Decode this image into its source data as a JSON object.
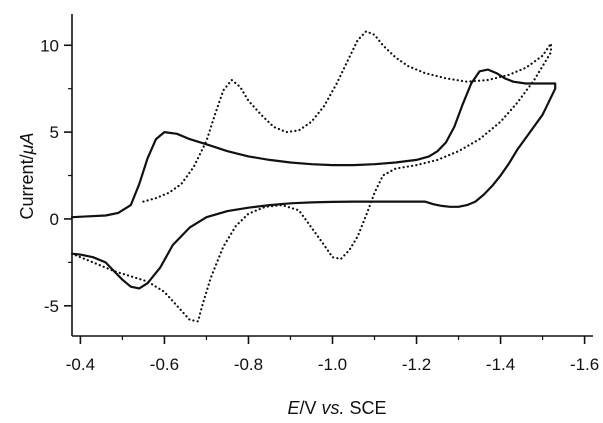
{
  "chart_data": {
    "type": "line",
    "title": "",
    "xlabel": {
      "italic_part": "E",
      "rest": "/V ",
      "vs": "vs.",
      "suffix": " SCE"
    },
    "ylabel": {
      "prefix": "Current/",
      "unit": "μA"
    },
    "xlim": [
      -0.38,
      -1.62
    ],
    "ylim": [
      -7.2,
      11.8
    ],
    "x_axis_reversed": true,
    "x_ticks": [
      -0.4,
      -0.6,
      -0.8,
      -1.0,
      -1.2,
      -1.4,
      -1.6
    ],
    "x_tick_labels": [
      "-0.4",
      "-0.6",
      "-0.8",
      "-1.0",
      "-1.2",
      "-1.4",
      "-1.6"
    ],
    "y_ticks": [
      10,
      5,
      0,
      -5
    ],
    "y_tick_labels": [
      "10",
      "5",
      "0",
      "-5"
    ],
    "grid": false,
    "legend": "none",
    "series": [
      {
        "style": "solid",
        "x": [
          -0.38,
          -0.42,
          -0.46,
          -0.49,
          -0.52,
          -0.54,
          -0.56,
          -0.58,
          -0.6,
          -0.63,
          -0.66,
          -0.7,
          -0.75,
          -0.8,
          -0.85,
          -0.9,
          -0.95,
          -1.0,
          -1.05,
          -1.1,
          -1.15,
          -1.2,
          -1.23,
          -1.25,
          -1.27,
          -1.29,
          -1.31,
          -1.33,
          -1.35,
          -1.37,
          -1.39,
          -1.41,
          -1.43,
          -1.46,
          -1.49,
          -1.53,
          -1.53,
          -1.5,
          -1.47,
          -1.44,
          -1.42,
          -1.4,
          -1.38,
          -1.36,
          -1.34,
          -1.32,
          -1.3,
          -1.28,
          -1.26,
          -1.24,
          -1.22,
          -1.2,
          -1.15,
          -1.1,
          -1.05,
          -1.0,
          -0.95,
          -0.9,
          -0.85,
          -0.8,
          -0.75,
          -0.7,
          -0.66,
          -0.62,
          -0.59,
          -0.56,
          -0.54,
          -0.52,
          -0.51,
          -0.5,
          -0.48,
          -0.46,
          -0.43,
          -0.4,
          -0.38
        ],
        "y": [
          0.1,
          0.15,
          0.2,
          0.35,
          0.8,
          2.0,
          3.5,
          4.6,
          5.0,
          4.9,
          4.6,
          4.3,
          3.9,
          3.6,
          3.4,
          3.25,
          3.15,
          3.1,
          3.1,
          3.15,
          3.25,
          3.4,
          3.6,
          3.9,
          4.4,
          5.3,
          6.6,
          7.8,
          8.5,
          8.6,
          8.4,
          8.1,
          7.9,
          7.8,
          7.8,
          7.8,
          7.5,
          6.0,
          5.0,
          4.0,
          3.2,
          2.5,
          1.9,
          1.4,
          1.0,
          0.8,
          0.7,
          0.7,
          0.75,
          0.85,
          1.0,
          1.0,
          1.0,
          1.0,
          1.0,
          0.98,
          0.95,
          0.9,
          0.8,
          0.65,
          0.45,
          0.1,
          -0.5,
          -1.5,
          -2.8,
          -3.7,
          -4.0,
          -3.9,
          -3.7,
          -3.5,
          -3.0,
          -2.5,
          -2.2,
          -2.05,
          -2.0
        ]
      },
      {
        "style": "dotted",
        "x": [
          -0.55,
          -0.58,
          -0.61,
          -0.64,
          -0.67,
          -0.7,
          -0.72,
          -0.74,
          -0.76,
          -0.78,
          -0.8,
          -0.83,
          -0.86,
          -0.89,
          -0.92,
          -0.95,
          -0.98,
          -1.01,
          -1.04,
          -1.06,
          -1.08,
          -1.1,
          -1.12,
          -1.15,
          -1.18,
          -1.22,
          -1.27,
          -1.32,
          -1.37,
          -1.42,
          -1.46,
          -1.5,
          -1.52,
          -1.52,
          -1.48,
          -1.44,
          -1.4,
          -1.35,
          -1.3,
          -1.25,
          -1.2,
          -1.15,
          -1.12,
          -1.1,
          -1.08,
          -1.06,
          -1.04,
          -1.02,
          -1.0,
          -0.98,
          -0.95,
          -0.92,
          -0.88,
          -0.84,
          -0.8,
          -0.77,
          -0.74,
          -0.71,
          -0.69,
          -0.68,
          -0.66,
          -0.63,
          -0.6,
          -0.56,
          -0.52,
          -0.48,
          -0.44,
          -0.4,
          -0.38
        ],
        "y": [
          1.0,
          1.2,
          1.5,
          2.0,
          3.0,
          4.5,
          6.0,
          7.4,
          8.0,
          7.6,
          6.8,
          6.0,
          5.3,
          5.0,
          5.1,
          5.6,
          6.5,
          7.8,
          9.3,
          10.3,
          10.8,
          10.6,
          10.0,
          9.3,
          8.8,
          8.4,
          8.1,
          7.9,
          8.0,
          8.3,
          8.7,
          9.4,
          10.1,
          9.6,
          8.0,
          6.7,
          5.6,
          4.6,
          3.9,
          3.4,
          3.1,
          2.9,
          2.5,
          1.5,
          0.2,
          -1.0,
          -1.8,
          -2.3,
          -2.2,
          -1.5,
          -0.5,
          0.5,
          0.8,
          0.7,
          0.3,
          -0.4,
          -1.6,
          -3.4,
          -5.0,
          -5.9,
          -5.8,
          -5.0,
          -4.2,
          -3.6,
          -3.3,
          -3.0,
          -2.6,
          -2.2,
          -2.0
        ]
      }
    ]
  }
}
